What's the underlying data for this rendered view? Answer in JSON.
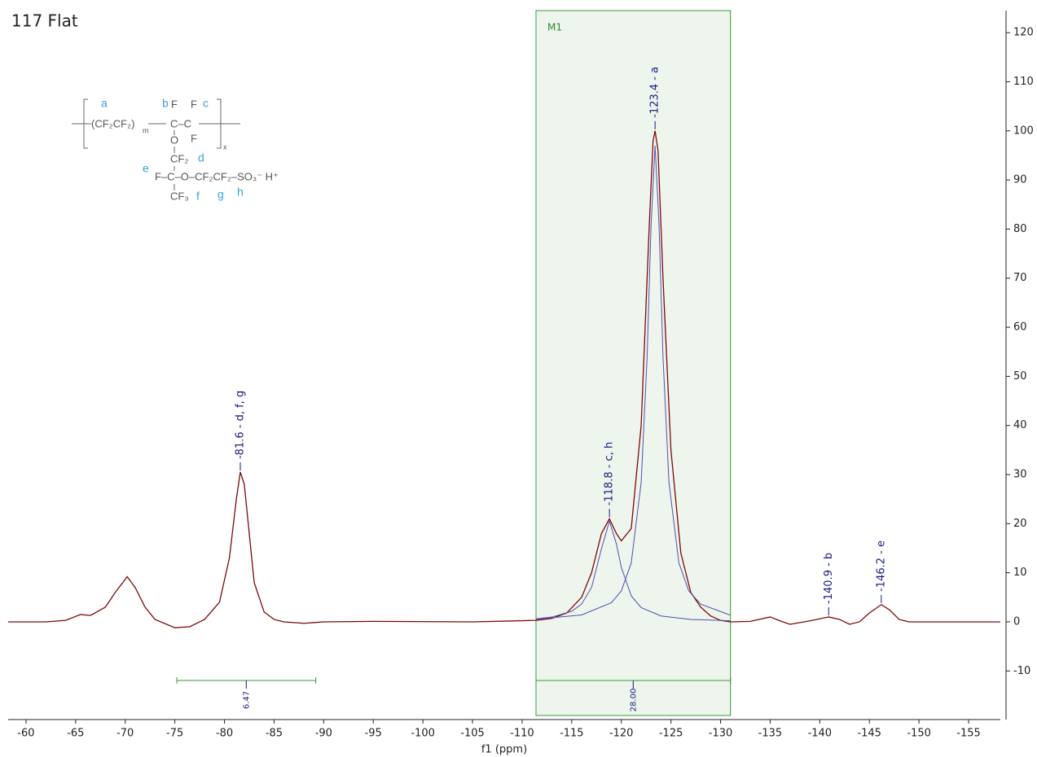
{
  "chart_data": {
    "type": "nmr",
    "title": "117 Flat",
    "x_label": "f1 (ppm)",
    "xlim": [
      -58.2,
      -158.2
    ],
    "xticks": [
      -60,
      -65,
      -70,
      -75,
      -80,
      -85,
      -90,
      -95,
      -100,
      -105,
      -110,
      -115,
      -120,
      -125,
      -130,
      -135,
      -140,
      -145,
      -150,
      -155
    ],
    "ylim": [
      -19.9,
      124.5
    ],
    "yticks": [
      -10,
      0,
      10,
      20,
      30,
      40,
      50,
      60,
      70,
      80,
      90,
      100,
      110,
      120
    ],
    "series": [
      {
        "color": "#7a0a0a",
        "x": [
          -58.2,
          -62,
          -64,
          -65.5,
          -66.5,
          -68,
          -69,
          -70.2,
          -71,
          -72,
          -73,
          -75,
          -76.5,
          -78,
          -79.5,
          -80.5,
          -81.2,
          -81.6,
          -82,
          -82.5,
          -83,
          -84,
          -85,
          -86,
          -88,
          -90,
          -95,
          -105,
          -111.4,
          -113,
          -114.5,
          -116,
          -117,
          -118,
          -118.8,
          -119.5,
          -120,
          -121,
          -122,
          -122.8,
          -123.2,
          -123.4,
          -123.7,
          -124.2,
          -125,
          -126,
          -127,
          -128,
          -129,
          -130,
          -131,
          -133,
          -135,
          -136,
          -137,
          -139,
          -140.9,
          -142,
          -143,
          -144,
          -145,
          -146.2,
          -147,
          -148,
          -149,
          -152,
          -158.2
        ],
        "values": [
          0,
          0,
          0.3,
          1.5,
          1.3,
          3,
          6,
          9.2,
          7,
          3,
          0.5,
          -1.2,
          -1,
          0.5,
          4,
          13,
          25,
          30.5,
          28,
          18,
          8,
          2,
          0.5,
          0,
          -0.3,
          0,
          0.1,
          0,
          0.3,
          0.7,
          1.8,
          5,
          10,
          18,
          21,
          18,
          16.5,
          19,
          40,
          80,
          98,
          100,
          96,
          70,
          35,
          14,
          6,
          3,
          1.2,
          0.3,
          0,
          0.1,
          1,
          0.2,
          -0.5,
          0.2,
          1,
          0.5,
          -0.5,
          0,
          1.8,
          3.5,
          2.5,
          0.5,
          0,
          0,
          0
        ]
      },
      {
        "color": "#5050b0",
        "x": [
          -111.4,
          -113,
          -115,
          -116,
          -117,
          -118,
          -118.8,
          -119.5,
          -120,
          -121,
          -122,
          -124,
          -127,
          -131
        ],
        "values": [
          0.61,
          0.98,
          2.15,
          3.63,
          7.0,
          14.9,
          20.5,
          15.9,
          11.1,
          5.3,
          2.9,
          1.2,
          0.5,
          0.23
        ]
      },
      {
        "color": "#5050b0",
        "x": [
          -111.4,
          -116,
          -119,
          -120,
          -121,
          -122,
          -122.6,
          -123,
          -123.4,
          -123.8,
          -124.2,
          -124.8,
          -125.8,
          -126.8,
          -128,
          -131
        ],
        "values": [
          0.54,
          1.4,
          3.9,
          6.3,
          12,
          28.4,
          54,
          81,
          97,
          81,
          54,
          28.4,
          12,
          6.3,
          3.6,
          1.35
        ]
      }
    ],
    "peaks": [
      {
        "label": "-81.6 - d, f, g",
        "x": -81.6,
        "y": 30.5
      },
      {
        "label": "-118.8 - c, h",
        "x": -118.8,
        "y": 21
      },
      {
        "label": "-123.4 - a",
        "x": -123.4,
        "y": 100
      },
      {
        "label": "-140.9 - b",
        "x": -140.9,
        "y": 1
      },
      {
        "label": "-146.2 - e",
        "x": -146.2,
        "y": 3.5
      }
    ],
    "integrals": [
      {
        "range": [
          -75.2,
          -89.2
        ],
        "label": "6.47"
      },
      {
        "range": [
          -111.4,
          -131
        ],
        "label": "28.00"
      }
    ],
    "region": {
      "label": "M1",
      "range": [
        -111.4,
        -131
      ]
    }
  },
  "structure": {
    "texts": [
      "a",
      "b",
      "F",
      "F",
      "c",
      "(CF₂CF₂)",
      "m",
      "C–C",
      "O",
      "F",
      "x",
      "CF₂",
      "d",
      "e",
      "F–C–O–CF₂CF₂–SO₃⁻ H⁺",
      "CF₃",
      "f",
      "g",
      "h"
    ]
  }
}
